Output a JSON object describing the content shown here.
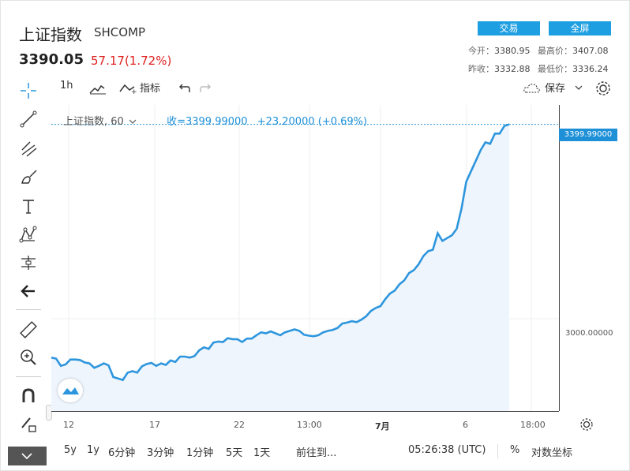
{
  "header": {
    "title": "上证指数",
    "ticker": "SHCOMP",
    "price": "3390.05",
    "change": "57.17(1.72%)",
    "buttons": [
      {
        "label": "交易"
      },
      {
        "label": "全屏"
      }
    ],
    "stats": {
      "open_label": "今开：",
      "open": "3380.95",
      "high_label": "最高价：",
      "high": "3407.08",
      "prev_label": "昨收：",
      "prev": "3332.88",
      "low_label": "最低价：",
      "low": "3336.24"
    }
  },
  "toolbar": {
    "interval": "1h",
    "indicators": "指标",
    "save": "保存"
  },
  "legend": {
    "symbol": "上证指数, 60",
    "close": "收=3399.99000",
    "change": "+23.20000 (+0.69%)"
  },
  "chart_data": {
    "type": "area",
    "y_labels": [
      "3399.99000",
      "3000.00000"
    ],
    "x_tick_labels": [
      "12",
      "17",
      "22",
      "13:00",
      "7月",
      "6",
      "18:00"
    ],
    "series": [
      {
        "values": [
          2920,
          2918,
          2903,
          2906,
          2916,
          2916,
          2915,
          2910,
          2908,
          2899,
          2903,
          2908,
          2904,
          2880,
          2877,
          2874,
          2889,
          2892,
          2889,
          2902,
          2907,
          2909,
          2903,
          2908,
          2905,
          2914,
          2911,
          2922,
          2922,
          2920,
          2923,
          2935,
          2941,
          2938,
          2951,
          2953,
          2952,
          2960,
          2958,
          2958,
          2952,
          2959,
          2959,
          2966,
          2972,
          2970,
          2974,
          2970,
          2966,
          2972,
          2975,
          2978,
          2975,
          2967,
          2965,
          2964,
          2966,
          2972,
          2975,
          2977,
          2981,
          2990,
          2992,
          2995,
          2993,
          2998,
          3005,
          3016,
          3022,
          3026,
          3040,
          3052,
          3058,
          3071,
          3079,
          3094,
          3100,
          3112,
          3129,
          3139,
          3142,
          3176,
          3160,
          3166,
          3172,
          3185,
          3227,
          3282,
          3304,
          3325,
          3347,
          3363,
          3360,
          3381,
          3381,
          3397,
          3400
        ],
        "color": "#2e96dd"
      }
    ],
    "ylim": [
      2810,
      3440
    ],
    "last_value": 3399.99
  },
  "bottom": {
    "ranges": [
      "5y",
      "1y",
      "6分钟",
      "3分钟",
      "1分钟",
      "5天",
      "1天"
    ],
    "goto": "前往到...",
    "time": "05:26:38 (UTC)",
    "percent": "%",
    "log": "对数坐标"
  }
}
